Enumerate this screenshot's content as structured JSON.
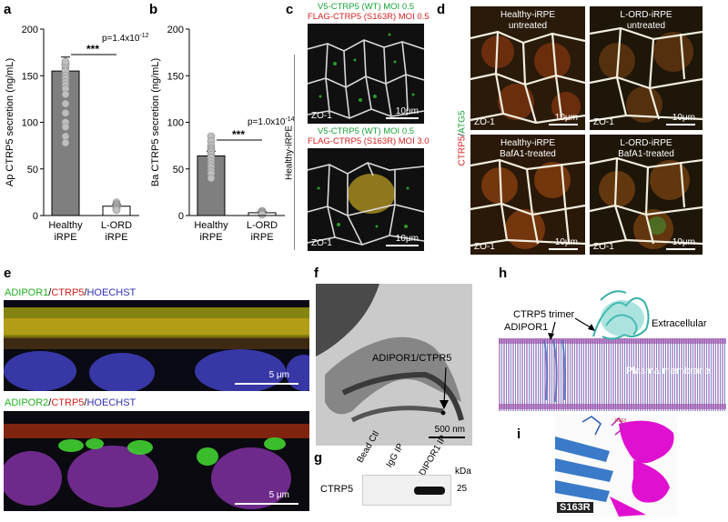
{
  "panels": {
    "a": "a",
    "b": "b",
    "c": "c",
    "d": "d",
    "e": "e",
    "f": "f",
    "g": "g",
    "h": "h",
    "i": "i"
  },
  "chart_data": [
    {
      "type": "bar",
      "panel": "a",
      "categories": [
        "Healthy\niRPE",
        "L-ORD\niRPE"
      ],
      "category_lines": [
        [
          "Healthy",
          "iRPE"
        ],
        [
          "L-ORD",
          "iRPE"
        ]
      ],
      "values": [
        155,
        10
      ],
      "errors": [
        15,
        2
      ],
      "points": [
        [
          162,
          158,
          155,
          150,
          147,
          143,
          140,
          136,
          130,
          120,
          110,
          100,
          95,
          85,
          78,
          162,
          165
        ],
        [
          14,
          12,
          11,
          10,
          9,
          8,
          7,
          6
        ]
      ],
      "ylabel": "Ap CTRP5 secretion (ng/mL)",
      "ylim": [
        0,
        200
      ],
      "yticks": [
        0,
        50,
        100,
        150,
        200
      ],
      "pvalue_label": "p=1.4x10",
      "pvalue_exp": "-12",
      "significance": "***",
      "colors": {
        "healthy": "#7f7f7f",
        "lord": "#ffffff",
        "point": "#bfbfbf"
      }
    },
    {
      "type": "bar",
      "panel": "b",
      "categories": [
        "Healthy\niRPE",
        "L-ORD\niRPE"
      ],
      "category_lines": [
        [
          "Healthy",
          "iRPE"
        ],
        [
          "L-ORD",
          "iRPE"
        ]
      ],
      "values": [
        64,
        3
      ],
      "errors": [
        5,
        1
      ],
      "points": [
        [
          85,
          80,
          75,
          72,
          70,
          68,
          65,
          62,
          58,
          55,
          52,
          48,
          45,
          40
        ],
        [
          5,
          4,
          3,
          2,
          2,
          1
        ]
      ],
      "ylabel": "Ba CTRP5 secretion (ng/mL)",
      "ylim": [
        0,
        200
      ],
      "yticks": [
        0,
        50,
        100,
        150,
        200
      ],
      "pvalue_label": "p=1.0x10",
      "pvalue_exp": "-14",
      "significance": "***",
      "colors": {
        "healthy": "#7f7f7f",
        "lord": "#ffffff",
        "point": "#bfbfbf"
      }
    }
  ],
  "panel_c": {
    "side_label": "Healthy-iRPE",
    "top": {
      "line1": "V5-CTRP5 (WT) MOI 0.5",
      "line2": "FLAG-CTRP5 (S163R) MOI 0.5",
      "zo": "ZO-1",
      "scale": "10μm"
    },
    "bottom": {
      "line1": "V5-CTRP5 (WT) MOI 0.5",
      "line2": "FLAG-CTRP5 (S163R) MOI 3.0",
      "zo": "ZO-1",
      "scale": "10μm"
    },
    "colors": {
      "green": "#1aa33a",
      "red": "#d42020"
    }
  },
  "panel_d": {
    "side_ctrp5": "CTRP5",
    "side_slash": "/",
    "side_atg5": "ATG5",
    "tiles": [
      {
        "title": "Healthy-iRPE",
        "sub": "untreated",
        "zo": "ZO-1",
        "scale": "10μm"
      },
      {
        "title": "L-ORD-iRPE",
        "sub": "untreated",
        "zo": "ZO-1",
        "scale": "10μm"
      },
      {
        "title": "Healthy-iRPE",
        "sub": "BafA1-treated",
        "zo": "ZO-1",
        "scale": "10μm"
      },
      {
        "title": "L-ORD-iRPE",
        "sub": "BafA1-treated",
        "zo": "ZO-1",
        "scale": "10μm"
      }
    ]
  },
  "panel_e": {
    "top": {
      "a": "ADIPOR1",
      "b": "CTRP5",
      "c": "HOECHST",
      "scale": "5 μm"
    },
    "bottom": {
      "a": "ADIPOR2",
      "b": "CTRP5",
      "c": "HOECHST",
      "scale": "5 μm"
    },
    "slash": "/",
    "colors": {
      "green": "#22b022",
      "red": "#d42020",
      "blue": "#3030b0"
    }
  },
  "panel_f": {
    "label": "ADIPOR1/CTPR5",
    "scale": "500 nm"
  },
  "panel_g": {
    "lanes": [
      "Bead Ctl",
      "IgG IP",
      "ADIPOR1 IP"
    ],
    "kda": "kDa",
    "marker": "25",
    "row_label": "CTRP5"
  },
  "panel_h": {
    "trimer": "CTRP5 trimer",
    "adipor1": "ADIPOR1",
    "extracellular": "Extracellular",
    "membrane": "Plasma membrane"
  },
  "panel_i": {
    "mutation": "S163R",
    "residue": "R163"
  }
}
